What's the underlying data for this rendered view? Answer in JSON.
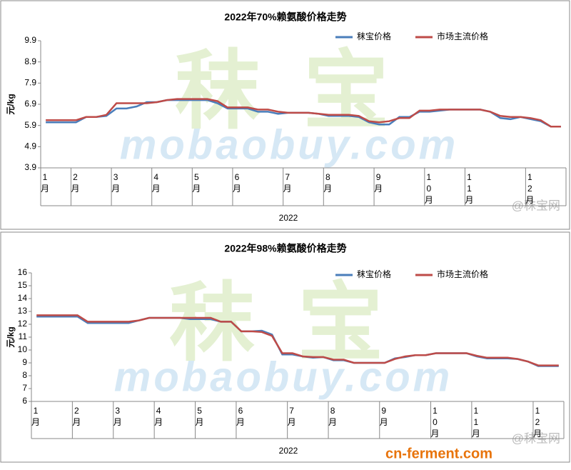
{
  "chart_data": [
    {
      "type": "line",
      "title": "2022年70%赖氨酸价格走势",
      "ylabel": "元/kg",
      "xlabel": "2022",
      "watermarks": [
        "秣宝",
        "mobaobuy.com",
        "@秣宝网"
      ],
      "categories": [
        "1月",
        null,
        null,
        "2月",
        null,
        null,
        null,
        "3月",
        null,
        null,
        null,
        "4月",
        null,
        null,
        null,
        "5月",
        null,
        null,
        null,
        "6月",
        null,
        null,
        null,
        null,
        "7月",
        null,
        null,
        null,
        "8月",
        null,
        null,
        null,
        null,
        "9月",
        null,
        null,
        null,
        null,
        "10月",
        null,
        null,
        null,
        "11月",
        null,
        null,
        null,
        null,
        null,
        "12月",
        null,
        null,
        null
      ],
      "series": [
        {
          "name": "秣宝价格",
          "color": "#4a7ebb",
          "values": [
            6.05,
            6.05,
            6.05,
            6.05,
            6.3,
            6.3,
            6.35,
            6.7,
            6.7,
            6.8,
            7.0,
            7.0,
            7.1,
            7.1,
            7.1,
            7.1,
            7.1,
            6.95,
            6.7,
            6.7,
            6.7,
            6.55,
            6.55,
            6.45,
            6.5,
            6.5,
            6.5,
            6.45,
            6.35,
            6.35,
            6.35,
            6.3,
            6.05,
            5.95,
            5.95,
            6.3,
            6.3,
            6.55,
            6.55,
            6.6,
            6.65,
            6.65,
            6.65,
            6.65,
            6.55,
            6.25,
            6.2,
            6.3,
            6.2,
            6.1,
            5.85,
            5.85
          ]
        },
        {
          "name": "市场主流价格",
          "color": "#be4b48",
          "values": [
            6.15,
            6.15,
            6.15,
            6.15,
            6.3,
            6.3,
            6.4,
            6.95,
            6.95,
            6.95,
            6.95,
            7.0,
            7.1,
            7.15,
            7.15,
            7.15,
            7.15,
            7.05,
            6.75,
            6.75,
            6.75,
            6.65,
            6.65,
            6.55,
            6.5,
            6.5,
            6.5,
            6.45,
            6.4,
            6.4,
            6.4,
            6.35,
            6.1,
            6.05,
            6.1,
            6.25,
            6.25,
            6.6,
            6.6,
            6.65,
            6.65,
            6.65,
            6.65,
            6.65,
            6.55,
            6.35,
            6.3,
            6.3,
            6.25,
            6.15,
            5.85,
            5.85
          ]
        }
      ],
      "ylim": [
        3.9,
        9.9
      ],
      "yticks": [
        3.9,
        4.9,
        5.9,
        6.9,
        7.9,
        8.9,
        9.9
      ],
      "grid": false,
      "legend": "upper right"
    },
    {
      "type": "line",
      "title": "2022年98%赖氨酸价格走势",
      "ylabel": "元/kg",
      "xlabel": "2022",
      "watermarks": [
        "秣宝",
        "mobaobuy.com",
        "@秣宝网"
      ],
      "categories": [
        "1月",
        null,
        null,
        null,
        "2月",
        null,
        null,
        null,
        "3月",
        null,
        null,
        null,
        "4月",
        null,
        null,
        null,
        "5月",
        null,
        null,
        null,
        "6月",
        null,
        null,
        null,
        null,
        "7月",
        null,
        null,
        null,
        "8月",
        null,
        null,
        null,
        null,
        "9月",
        null,
        null,
        null,
        null,
        "10月",
        null,
        null,
        null,
        "11月",
        null,
        null,
        null,
        null,
        null,
        "12月",
        null,
        null
      ],
      "series": [
        {
          "name": "秣宝价格",
          "color": "#4a7ebb",
          "values": [
            12.6,
            12.6,
            12.6,
            12.6,
            12.6,
            12.1,
            12.1,
            12.1,
            12.1,
            12.1,
            12.3,
            12.5,
            12.5,
            12.5,
            12.5,
            12.4,
            12.4,
            12.4,
            12.2,
            12.2,
            11.45,
            11.45,
            11.5,
            11.2,
            9.65,
            9.65,
            9.5,
            9.4,
            9.45,
            9.2,
            9.2,
            9.0,
            9.0,
            9.0,
            9.0,
            9.35,
            9.45,
            9.6,
            9.6,
            9.75,
            9.75,
            9.75,
            9.75,
            9.5,
            9.35,
            9.35,
            9.35,
            9.3,
            9.1,
            8.75,
            8.75,
            8.75
          ]
        },
        {
          "name": "市场主流价格",
          "color": "#be4b48",
          "values": [
            12.7,
            12.7,
            12.7,
            12.7,
            12.7,
            12.2,
            12.2,
            12.2,
            12.2,
            12.2,
            12.3,
            12.5,
            12.5,
            12.5,
            12.5,
            12.5,
            12.5,
            12.5,
            12.2,
            12.2,
            11.45,
            11.45,
            11.4,
            11.1,
            9.75,
            9.75,
            9.5,
            9.45,
            9.45,
            9.25,
            9.25,
            9.0,
            9.0,
            9.0,
            9.0,
            9.3,
            9.5,
            9.6,
            9.6,
            9.75,
            9.75,
            9.75,
            9.75,
            9.55,
            9.4,
            9.4,
            9.4,
            9.3,
            9.1,
            8.8,
            8.8,
            8.8
          ]
        }
      ],
      "ylim": [
        6,
        16
      ],
      "yticks": [
        6,
        7,
        8,
        9,
        10,
        11,
        12,
        13,
        14,
        15,
        16
      ],
      "grid": false,
      "legend": "upper right"
    }
  ],
  "site_watermark": "cn-ferment.com"
}
